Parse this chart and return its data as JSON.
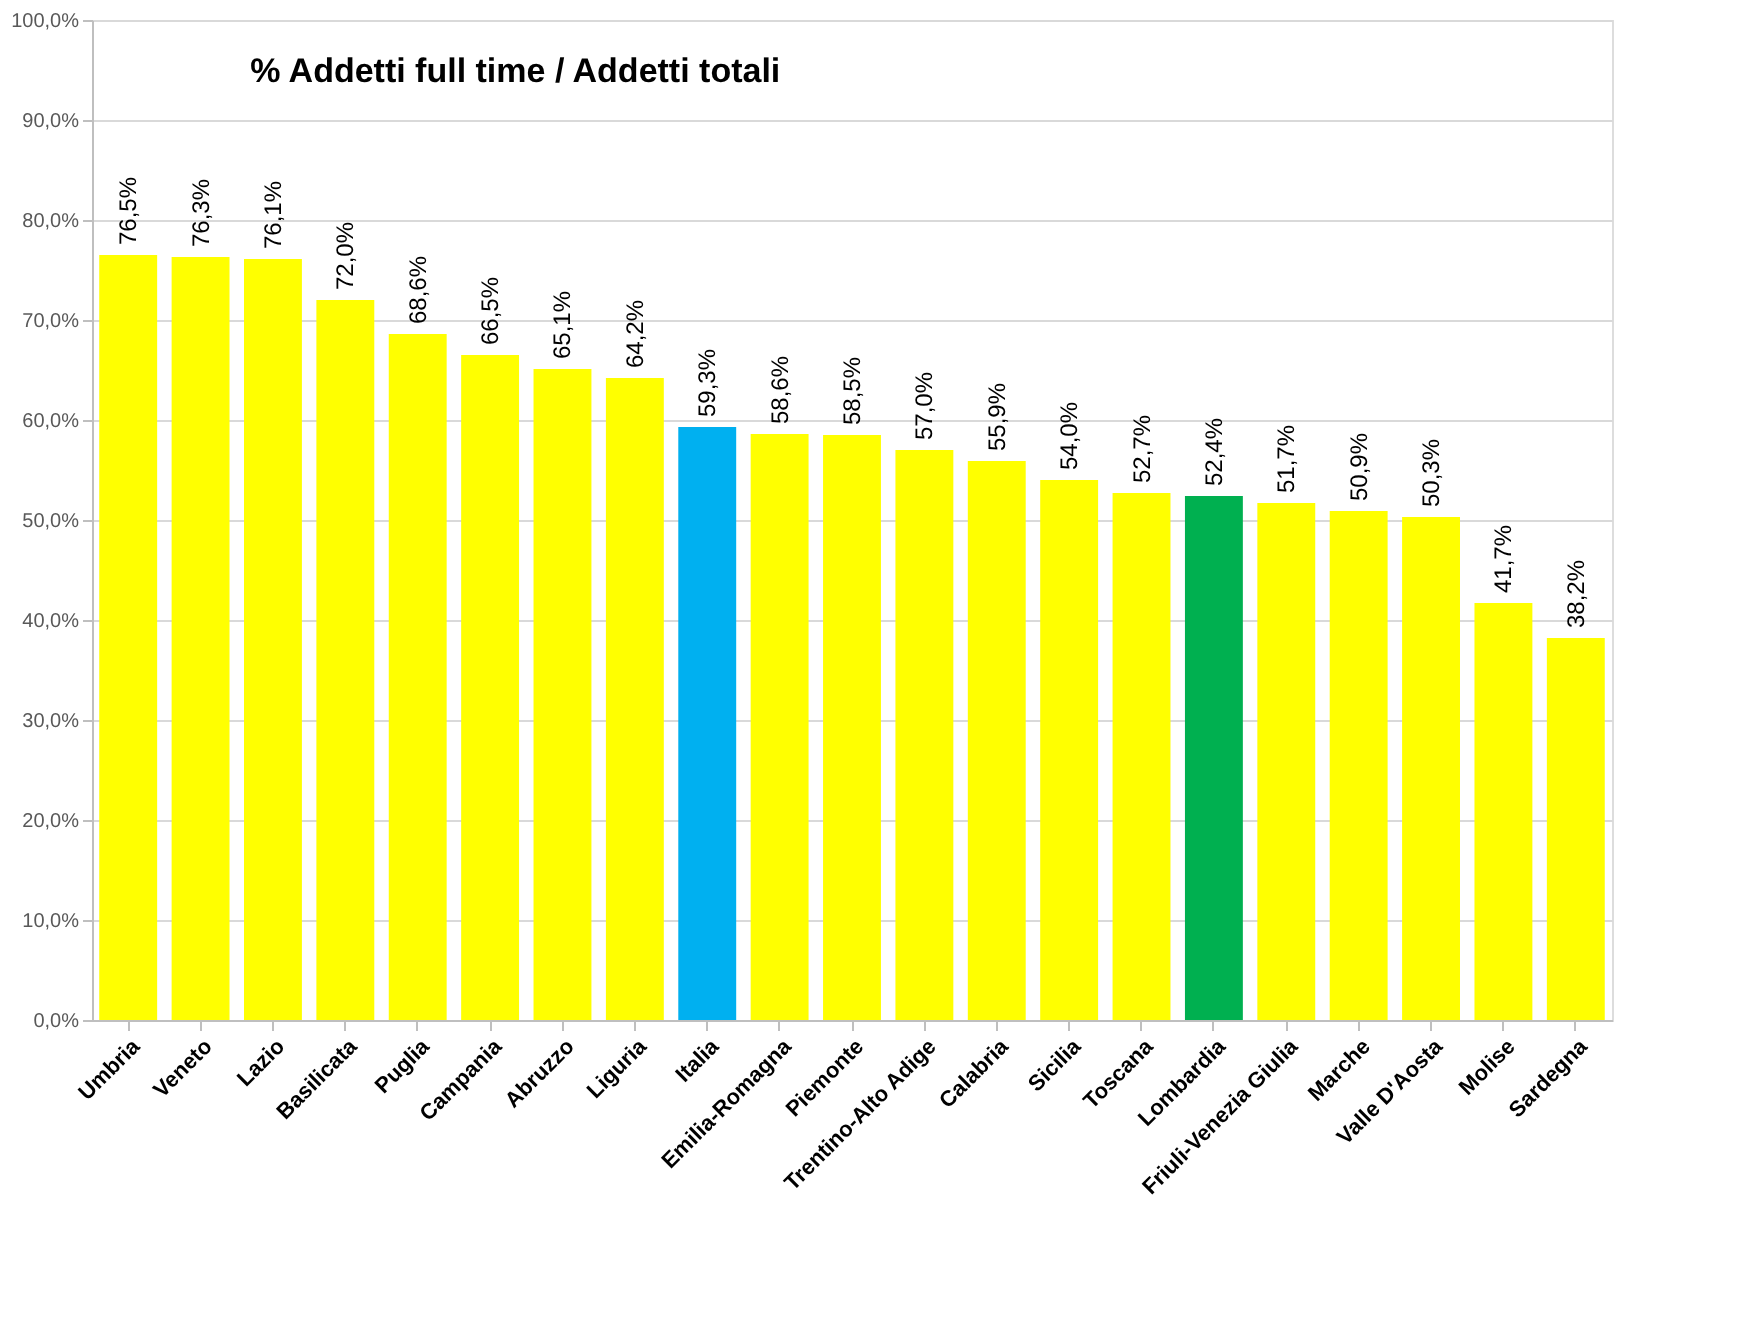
{
  "chart_data": {
    "type": "bar",
    "title": "% Addetti full time / Addetti totali",
    "categories": [
      "Umbria",
      "Veneto",
      "Lazio",
      "Basilicata",
      "Puglia",
      "Campania",
      "Abruzzo",
      "Liguria",
      "Italia",
      "Emilia-Romagna",
      "Piemonte",
      "Trentino-Alto Adige",
      "Calabria",
      "Sicilia",
      "Toscana",
      "Lombardia",
      "Friuli-Venezia Giulia",
      "Marche",
      "Valle D'Aosta",
      "Molise",
      "Sardegna"
    ],
    "values": [
      76.5,
      76.3,
      76.1,
      72.0,
      68.6,
      66.5,
      65.1,
      64.2,
      59.3,
      58.6,
      58.5,
      57.0,
      55.9,
      54.0,
      52.7,
      52.4,
      51.7,
      50.9,
      50.3,
      41.7,
      38.2
    ],
    "value_labels": [
      "76,5%",
      "76,3%",
      "76,1%",
      "72,0%",
      "68,6%",
      "66,5%",
      "65,1%",
      "64,2%",
      "59,3%",
      "58,6%",
      "58,5%",
      "57,0%",
      "55,9%",
      "54,0%",
      "52,7%",
      "52,4%",
      "51,7%",
      "50,9%",
      "50,3%",
      "41,7%",
      "38,2%"
    ],
    "colors": [
      "#ffff00",
      "#ffff00",
      "#ffff00",
      "#ffff00",
      "#ffff00",
      "#ffff00",
      "#ffff00",
      "#ffff00",
      "#00b0f0",
      "#ffff00",
      "#ffff00",
      "#ffff00",
      "#ffff00",
      "#ffff00",
      "#ffff00",
      "#00b050",
      "#ffff00",
      "#ffff00",
      "#ffff00",
      "#ffff00",
      "#ffff00"
    ],
    "ylim": [
      0,
      100
    ],
    "yticks": [
      {
        "value": 0,
        "label": "0,0%"
      },
      {
        "value": 10,
        "label": "10,0%"
      },
      {
        "value": 20,
        "label": "20,0%"
      },
      {
        "value": 30,
        "label": "30,0%"
      },
      {
        "value": 40,
        "label": "40,0%"
      },
      {
        "value": 50,
        "label": "50,0%"
      },
      {
        "value": 60,
        "label": "60,0%"
      },
      {
        "value": 70,
        "label": "70,0%"
      },
      {
        "value": 80,
        "label": "80,0%"
      },
      {
        "value": 90,
        "label": "90,0%"
      },
      {
        "value": 100,
        "label": "100,0%"
      }
    ],
    "grid": true
  }
}
